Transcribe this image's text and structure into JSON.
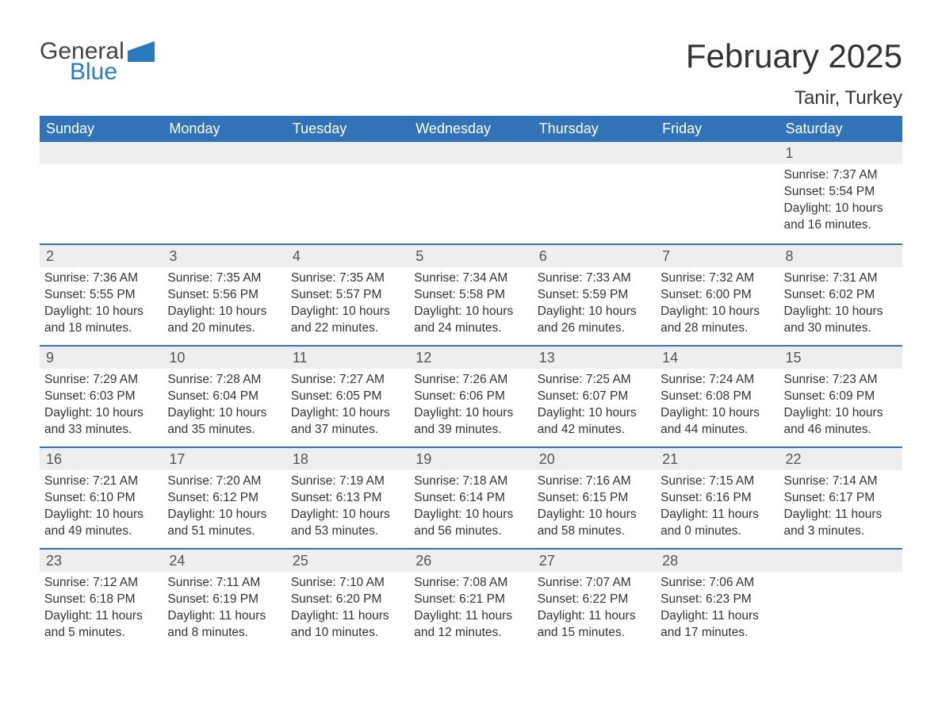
{
  "brand": {
    "word1": "General",
    "word2": "Blue",
    "accent_color": "#2a7ac0"
  },
  "title": "February 2025",
  "location": "Tanir, Turkey",
  "colors": {
    "header_bg": "#3273b8",
    "header_text": "#ffffff",
    "daynum_bg": "#eeeeee",
    "text": "#333333",
    "week_border": "#3273b8"
  },
  "day_names": [
    "Sunday",
    "Monday",
    "Tuesday",
    "Wednesday",
    "Thursday",
    "Friday",
    "Saturday"
  ],
  "weeks": [
    [
      null,
      null,
      null,
      null,
      null,
      null,
      {
        "n": "1",
        "sunrise": "Sunrise: 7:37 AM",
        "sunset": "Sunset: 5:54 PM",
        "day1": "Daylight: 10 hours",
        "day2": "and 16 minutes."
      }
    ],
    [
      {
        "n": "2",
        "sunrise": "Sunrise: 7:36 AM",
        "sunset": "Sunset: 5:55 PM",
        "day1": "Daylight: 10 hours",
        "day2": "and 18 minutes."
      },
      {
        "n": "3",
        "sunrise": "Sunrise: 7:35 AM",
        "sunset": "Sunset: 5:56 PM",
        "day1": "Daylight: 10 hours",
        "day2": "and 20 minutes."
      },
      {
        "n": "4",
        "sunrise": "Sunrise: 7:35 AM",
        "sunset": "Sunset: 5:57 PM",
        "day1": "Daylight: 10 hours",
        "day2": "and 22 minutes."
      },
      {
        "n": "5",
        "sunrise": "Sunrise: 7:34 AM",
        "sunset": "Sunset: 5:58 PM",
        "day1": "Daylight: 10 hours",
        "day2": "and 24 minutes."
      },
      {
        "n": "6",
        "sunrise": "Sunrise: 7:33 AM",
        "sunset": "Sunset: 5:59 PM",
        "day1": "Daylight: 10 hours",
        "day2": "and 26 minutes."
      },
      {
        "n": "7",
        "sunrise": "Sunrise: 7:32 AM",
        "sunset": "Sunset: 6:00 PM",
        "day1": "Daylight: 10 hours",
        "day2": "and 28 minutes."
      },
      {
        "n": "8",
        "sunrise": "Sunrise: 7:31 AM",
        "sunset": "Sunset: 6:02 PM",
        "day1": "Daylight: 10 hours",
        "day2": "and 30 minutes."
      }
    ],
    [
      {
        "n": "9",
        "sunrise": "Sunrise: 7:29 AM",
        "sunset": "Sunset: 6:03 PM",
        "day1": "Daylight: 10 hours",
        "day2": "and 33 minutes."
      },
      {
        "n": "10",
        "sunrise": "Sunrise: 7:28 AM",
        "sunset": "Sunset: 6:04 PM",
        "day1": "Daylight: 10 hours",
        "day2": "and 35 minutes."
      },
      {
        "n": "11",
        "sunrise": "Sunrise: 7:27 AM",
        "sunset": "Sunset: 6:05 PM",
        "day1": "Daylight: 10 hours",
        "day2": "and 37 minutes."
      },
      {
        "n": "12",
        "sunrise": "Sunrise: 7:26 AM",
        "sunset": "Sunset: 6:06 PM",
        "day1": "Daylight: 10 hours",
        "day2": "and 39 minutes."
      },
      {
        "n": "13",
        "sunrise": "Sunrise: 7:25 AM",
        "sunset": "Sunset: 6:07 PM",
        "day1": "Daylight: 10 hours",
        "day2": "and 42 minutes."
      },
      {
        "n": "14",
        "sunrise": "Sunrise: 7:24 AM",
        "sunset": "Sunset: 6:08 PM",
        "day1": "Daylight: 10 hours",
        "day2": "and 44 minutes."
      },
      {
        "n": "15",
        "sunrise": "Sunrise: 7:23 AM",
        "sunset": "Sunset: 6:09 PM",
        "day1": "Daylight: 10 hours",
        "day2": "and 46 minutes."
      }
    ],
    [
      {
        "n": "16",
        "sunrise": "Sunrise: 7:21 AM",
        "sunset": "Sunset: 6:10 PM",
        "day1": "Daylight: 10 hours",
        "day2": "and 49 minutes."
      },
      {
        "n": "17",
        "sunrise": "Sunrise: 7:20 AM",
        "sunset": "Sunset: 6:12 PM",
        "day1": "Daylight: 10 hours",
        "day2": "and 51 minutes."
      },
      {
        "n": "18",
        "sunrise": "Sunrise: 7:19 AM",
        "sunset": "Sunset: 6:13 PM",
        "day1": "Daylight: 10 hours",
        "day2": "and 53 minutes."
      },
      {
        "n": "19",
        "sunrise": "Sunrise: 7:18 AM",
        "sunset": "Sunset: 6:14 PM",
        "day1": "Daylight: 10 hours",
        "day2": "and 56 minutes."
      },
      {
        "n": "20",
        "sunrise": "Sunrise: 7:16 AM",
        "sunset": "Sunset: 6:15 PM",
        "day1": "Daylight: 10 hours",
        "day2": "and 58 minutes."
      },
      {
        "n": "21",
        "sunrise": "Sunrise: 7:15 AM",
        "sunset": "Sunset: 6:16 PM",
        "day1": "Daylight: 11 hours",
        "day2": "and 0 minutes."
      },
      {
        "n": "22",
        "sunrise": "Sunrise: 7:14 AM",
        "sunset": "Sunset: 6:17 PM",
        "day1": "Daylight: 11 hours",
        "day2": "and 3 minutes."
      }
    ],
    [
      {
        "n": "23",
        "sunrise": "Sunrise: 7:12 AM",
        "sunset": "Sunset: 6:18 PM",
        "day1": "Daylight: 11 hours",
        "day2": "and 5 minutes."
      },
      {
        "n": "24",
        "sunrise": "Sunrise: 7:11 AM",
        "sunset": "Sunset: 6:19 PM",
        "day1": "Daylight: 11 hours",
        "day2": "and 8 minutes."
      },
      {
        "n": "25",
        "sunrise": "Sunrise: 7:10 AM",
        "sunset": "Sunset: 6:20 PM",
        "day1": "Daylight: 11 hours",
        "day2": "and 10 minutes."
      },
      {
        "n": "26",
        "sunrise": "Sunrise: 7:08 AM",
        "sunset": "Sunset: 6:21 PM",
        "day1": "Daylight: 11 hours",
        "day2": "and 12 minutes."
      },
      {
        "n": "27",
        "sunrise": "Sunrise: 7:07 AM",
        "sunset": "Sunset: 6:22 PM",
        "day1": "Daylight: 11 hours",
        "day2": "and 15 minutes."
      },
      {
        "n": "28",
        "sunrise": "Sunrise: 7:06 AM",
        "sunset": "Sunset: 6:23 PM",
        "day1": "Daylight: 11 hours",
        "day2": "and 17 minutes."
      },
      null
    ]
  ]
}
